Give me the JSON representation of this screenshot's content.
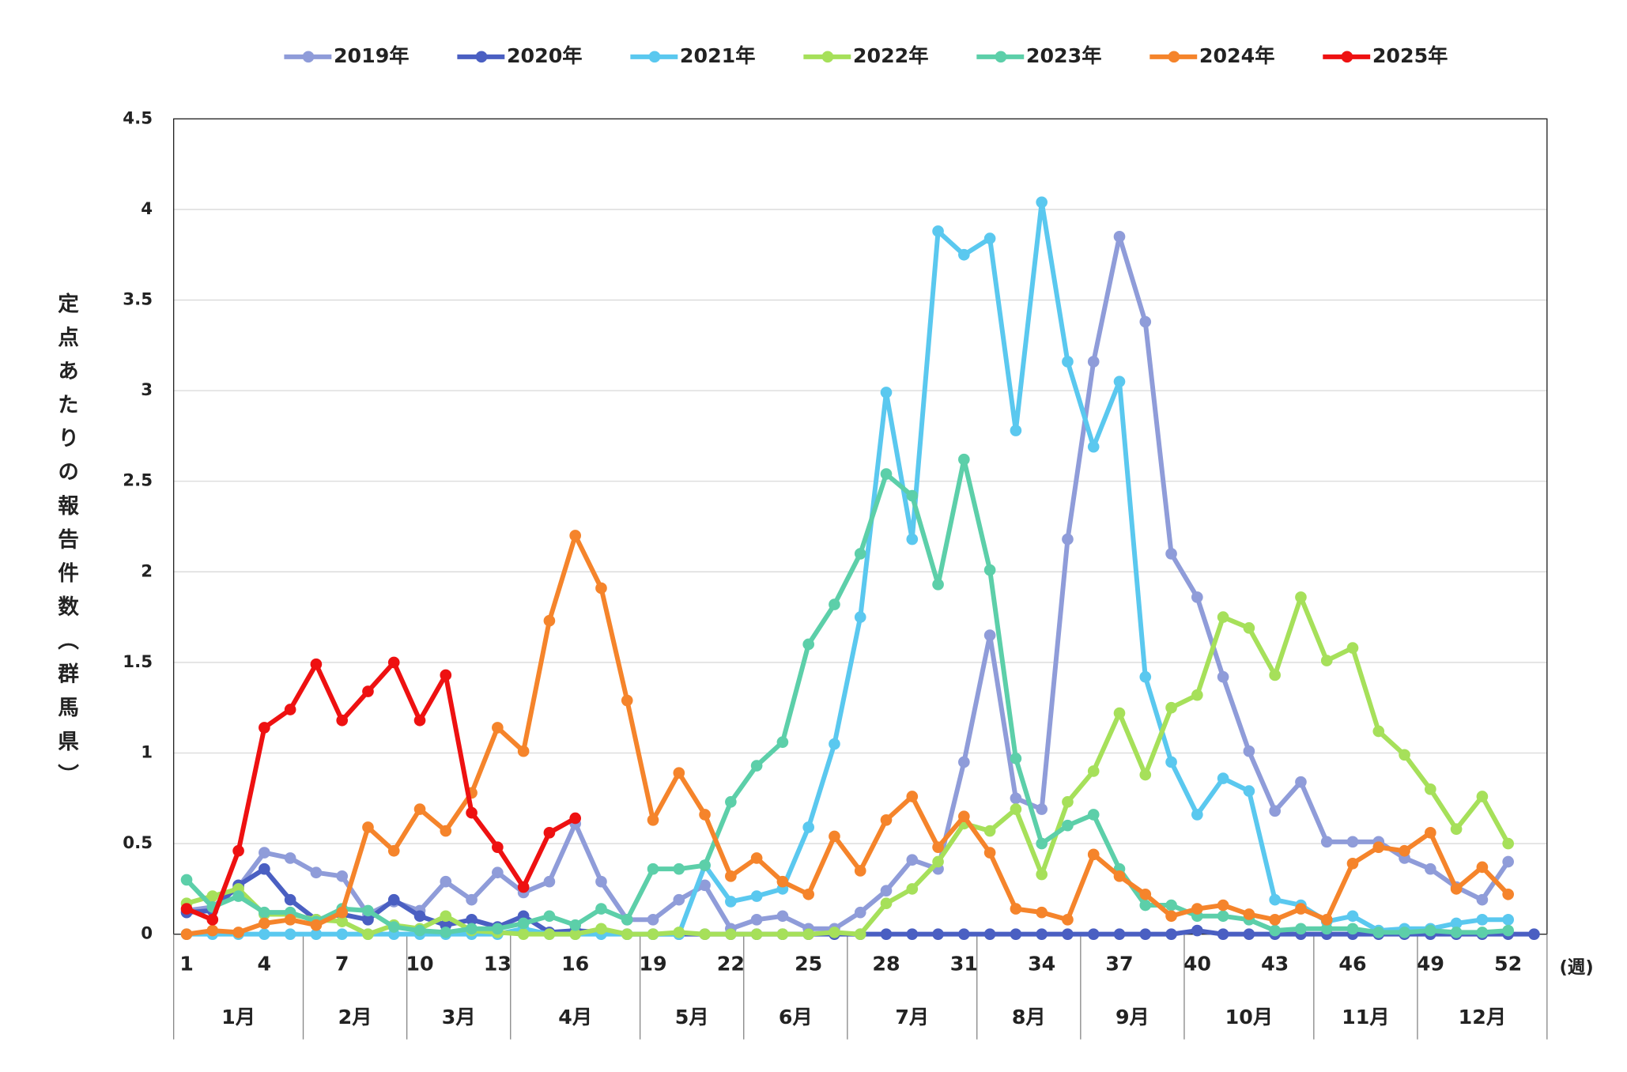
{
  "chart_data": {
    "type": "line",
    "y_label": "定点あたりの報告件数（群馬県）",
    "x_unit_label": "(週)",
    "months": [
      "1月",
      "2月",
      "3月",
      "4月",
      "5月",
      "6月",
      "7月",
      "8月",
      "9月",
      "10月",
      "11月",
      "12月"
    ],
    "categories": [
      "1",
      null,
      null,
      "4",
      null,
      null,
      "7",
      null,
      null,
      "10",
      null,
      null,
      "13",
      null,
      null,
      "16",
      null,
      null,
      "19",
      null,
      null,
      "22",
      null,
      null,
      "25",
      null,
      null,
      "28",
      null,
      null,
      "31",
      null,
      null,
      "34",
      null,
      null,
      "37",
      null,
      null,
      "40",
      null,
      null,
      "43",
      null,
      null,
      "46",
      null,
      null,
      "49",
      null,
      null,
      "52",
      null
    ],
    "ylim": [
      0,
      4.5
    ],
    "yticks": [
      0,
      0.5,
      1,
      1.5,
      2,
      2.5,
      3,
      3.5,
      4,
      4.5
    ],
    "grid": true,
    "series": [
      {
        "name": "2019年",
        "color": "#8f9cd9",
        "values": [
          0.13,
          0.15,
          0.26,
          0.45,
          0.42,
          0.34,
          0.32,
          0.11,
          0.18,
          0.13,
          0.29,
          0.19,
          0.34,
          0.23,
          0.29,
          0.61,
          0.29,
          0.08,
          0.08,
          0.19,
          0.27,
          0.03,
          0.08,
          0.1,
          0.03,
          0.03,
          0.12,
          0.24,
          0.41,
          0.36,
          0.95,
          1.65,
          0.75,
          0.69,
          2.18,
          3.16,
          3.85,
          3.38,
          2.1,
          1.86,
          1.42,
          1.01,
          0.68,
          0.84,
          0.51,
          0.51,
          0.51,
          0.42,
          0.36,
          0.26,
          0.19,
          0.4,
          null
        ]
      },
      {
        "name": "2020年",
        "color": "#4a5fc2",
        "values": [
          0.12,
          0.13,
          0.27,
          0.36,
          0.19,
          0.08,
          0.11,
          0.08,
          0.19,
          0.1,
          0.05,
          0.08,
          0.04,
          0.1,
          0.01,
          0.02,
          0.01,
          0,
          0,
          0,
          0,
          0,
          0,
          0,
          0,
          0,
          0,
          0,
          0,
          0,
          0,
          0,
          0,
          0,
          0,
          0,
          0,
          0,
          0,
          0.02,
          0,
          0,
          0,
          0,
          0,
          0,
          0,
          0,
          0,
          0,
          0,
          0,
          0
        ]
      },
      {
        "name": "2021年",
        "color": "#5ac8ef",
        "values": [
          0,
          0,
          0,
          0,
          0,
          0,
          0,
          0,
          0,
          0,
          0,
          0,
          0,
          0.03,
          0,
          0,
          0,
          0,
          0,
          0,
          0.38,
          0.18,
          0.21,
          0.25,
          0.59,
          1.05,
          1.75,
          2.99,
          2.18,
          3.88,
          3.75,
          3.84,
          2.78,
          4.04,
          3.16,
          2.69,
          3.05,
          1.42,
          0.95,
          0.66,
          0.86,
          0.79,
          0.19,
          0.16,
          0.07,
          0.1,
          0.02,
          0.03,
          0.03,
          0.06,
          0.08,
          0.08,
          null
        ]
      },
      {
        "name": "2022年",
        "color": "#a6e05a",
        "values": [
          0.17,
          0.21,
          0.25,
          0.11,
          0.11,
          0.08,
          0.07,
          0,
          0.05,
          0.03,
          0.1,
          0.02,
          0.01,
          0,
          0,
          0,
          0.03,
          0,
          0,
          0.01,
          0,
          0,
          0,
          0,
          0,
          0.01,
          0,
          0.17,
          0.25,
          0.4,
          0.61,
          0.57,
          0.69,
          0.33,
          0.73,
          0.9,
          1.22,
          0.88,
          1.25,
          1.32,
          1.75,
          1.69,
          1.43,
          1.86,
          1.51,
          1.58,
          1.12,
          0.99,
          0.8,
          0.58,
          0.76,
          0.5,
          null
        ]
      },
      {
        "name": "2023年",
        "color": "#5ccfa9",
        "values": [
          0.3,
          0.15,
          0.21,
          0.12,
          0.12,
          0.07,
          0.14,
          0.13,
          0.04,
          0.02,
          0.01,
          0.03,
          0.03,
          0.06,
          0.1,
          0.05,
          0.14,
          0.08,
          0.36,
          0.36,
          0.38,
          0.73,
          0.93,
          1.06,
          1.6,
          1.82,
          2.1,
          2.54,
          2.42,
          1.93,
          2.62,
          2.01,
          0.97,
          0.5,
          0.6,
          0.66,
          0.36,
          0.16,
          0.16,
          0.1,
          0.1,
          0.08,
          0.02,
          0.03,
          0.03,
          0.03,
          0.01,
          0.01,
          0.02,
          0.01,
          0.01,
          0.02,
          null
        ]
      },
      {
        "name": "2024年",
        "color": "#f5842b",
        "values": [
          0,
          0.02,
          0.01,
          0.06,
          0.08,
          0.05,
          0.12,
          0.59,
          0.46,
          0.69,
          0.57,
          0.78,
          1.14,
          1.01,
          1.73,
          2.2,
          1.91,
          1.29,
          0.63,
          0.89,
          0.66,
          0.32,
          0.42,
          0.29,
          0.22,
          0.54,
          0.35,
          0.63,
          0.76,
          0.48,
          0.65,
          0.45,
          0.14,
          0.12,
          0.08,
          0.44,
          0.32,
          0.22,
          0.1,
          0.14,
          0.16,
          0.11,
          0.08,
          0.14,
          0.08,
          0.39,
          0.48,
          0.46,
          0.56,
          0.25,
          0.37,
          0.22,
          null
        ]
      },
      {
        "name": "2025年",
        "color": "#ee1111",
        "values": [
          0.14,
          0.08,
          0.46,
          1.14,
          1.24,
          1.49,
          1.18,
          1.34,
          1.5,
          1.18,
          1.43,
          0.67,
          0.48,
          0.26,
          0.56,
          0.64,
          null,
          null,
          null,
          null,
          null,
          null,
          null,
          null,
          null,
          null,
          null,
          null,
          null,
          null,
          null,
          null,
          null,
          null,
          null,
          null,
          null,
          null,
          null,
          null,
          null,
          null,
          null,
          null,
          null,
          null,
          null,
          null,
          null,
          null,
          null,
          null,
          null
        ]
      }
    ]
  }
}
